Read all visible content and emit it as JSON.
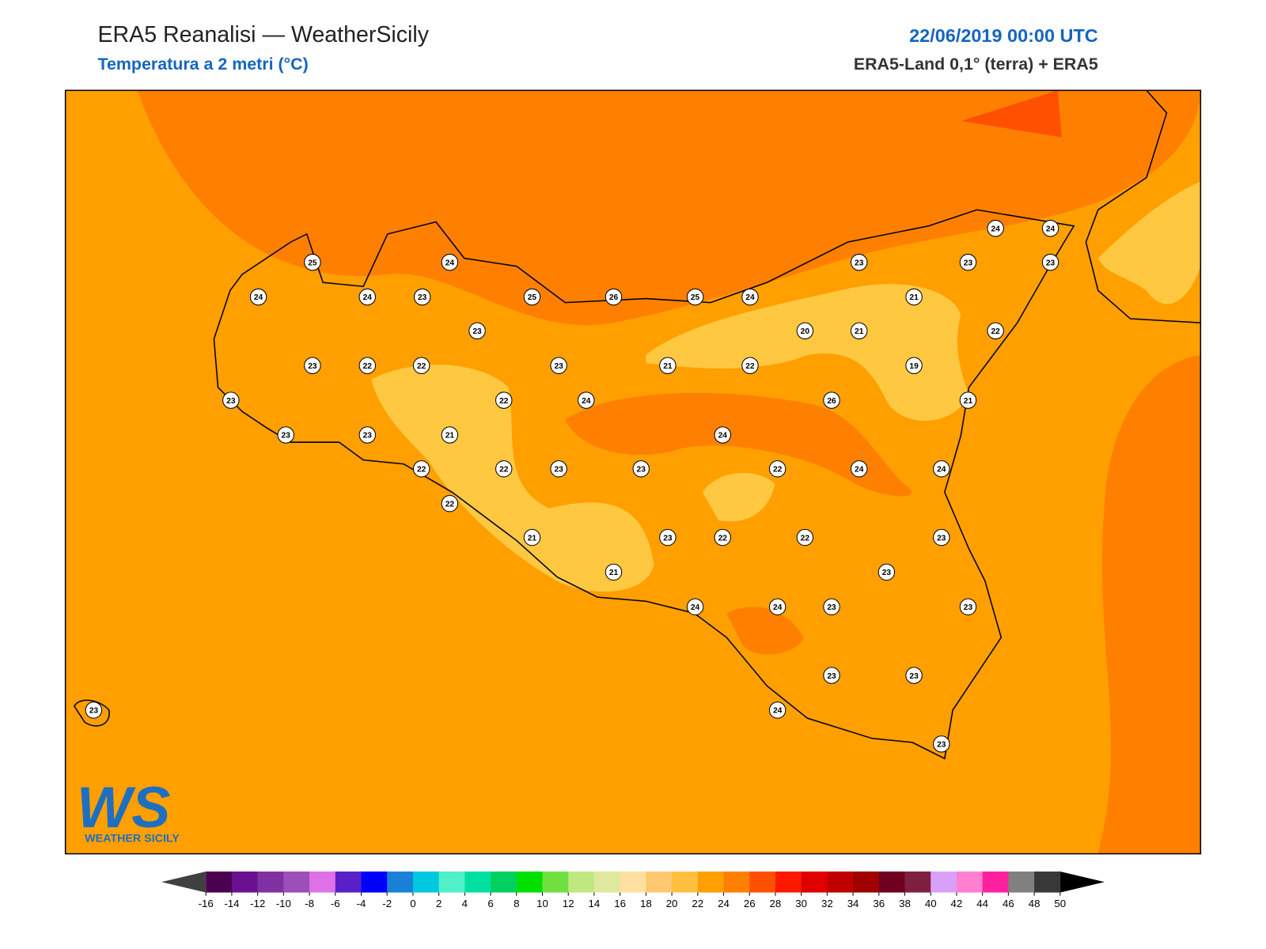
{
  "header": {
    "title": "ERA5 Reanalisi — WeatherSicily",
    "subtitle": "Temperatura a 2 metri (°C)",
    "datetime": "22/06/2019 00:00 UTC",
    "source": "ERA5-Land 0,1° (terra) + ERA5"
  },
  "stations": [
    25,
    24,
    24,
    24,
    23,
    25,
    26,
    25,
    24,
    23,
    23,
    24,
    24,
    23,
    23,
    20,
    21,
    21,
    22,
    23,
    22,
    22,
    23,
    21,
    22,
    19,
    23,
    22,
    24,
    26,
    21,
    23,
    23,
    21,
    24,
    22,
    22,
    23,
    23,
    22,
    24,
    24,
    22,
    21,
    23,
    22,
    22,
    23,
    21,
    23,
    24,
    24,
    23,
    23,
    23,
    23,
    24,
    23,
    23
  ],
  "colorbar": {
    "ticks": [
      -16,
      -14,
      -12,
      -10,
      -8,
      -6,
      -4,
      -2,
      0,
      2,
      4,
      6,
      8,
      10,
      12,
      14,
      16,
      18,
      20,
      22,
      24,
      26,
      28,
      30,
      32,
      34,
      36,
      38,
      40,
      42,
      44,
      46,
      48,
      50
    ],
    "colors": [
      "#4b0050",
      "#6a1090",
      "#8030a0",
      "#9c4fb8",
      "#e070e8",
      "#5a20c8",
      "#0000ff",
      "#1a80d8",
      "#00c8e0",
      "#50f0c8",
      "#00e0a0",
      "#00d060",
      "#00e000",
      "#70e040",
      "#c0e880",
      "#e0e8a0",
      "#ffe0a0",
      "#ffc870",
      "#ffc040",
      "#ff9f00",
      "#ff8000",
      "#ff5000",
      "#ff1800",
      "#e00000",
      "#c00000",
      "#a00000",
      "#700020",
      "#802040",
      "#d8a0f8",
      "#ff80d0",
      "#ff20a0",
      "#808080",
      "#383838"
    ],
    "under_color": "#404040",
    "over_color": "#000000"
  },
  "logo": {
    "mark": "WS",
    "name": "WEATHER SICILY"
  }
}
